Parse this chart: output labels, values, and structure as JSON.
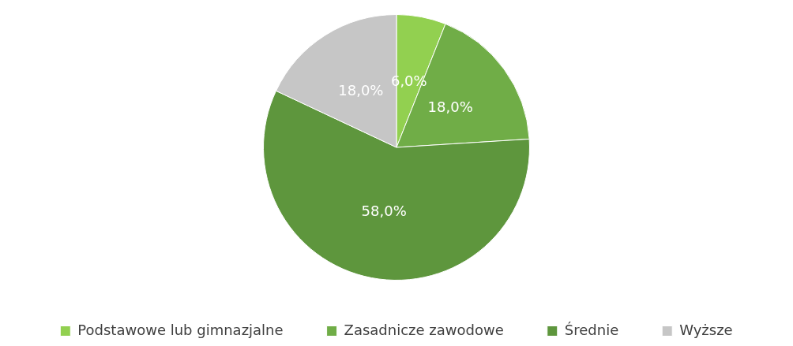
{
  "chart_data": {
    "type": "pie",
    "categories": [
      "Podstawowe lub gimnazjalne",
      "Zasadnicze zawodowe",
      "Średnie",
      "Wyższe"
    ],
    "values": [
      6,
      18,
      58,
      18
    ],
    "value_labels": [
      "6,0%",
      "18,0%",
      "58,0%",
      "18,0%"
    ],
    "colors": [
      "#92d050",
      "#70ad47",
      "#5e963d",
      "#c6c6c6"
    ],
    "legend": "bottom"
  }
}
